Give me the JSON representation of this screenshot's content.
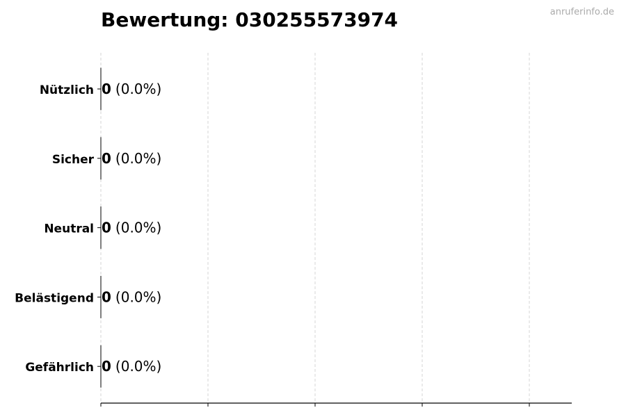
{
  "watermark": "anruferinfo.de",
  "chart_data": {
    "type": "bar",
    "orientation": "horizontal",
    "title": "Bewertung: 030255573974",
    "categories": [
      "Nützlich",
      "Sicher",
      "Neutral",
      "Belästigend",
      "Gefährlich"
    ],
    "values": [
      0,
      0,
      0,
      0,
      0
    ],
    "percent_labels": [
      "(0.0%)",
      "(0.0%)",
      "(0.0%)",
      "(0.0%)",
      "(0.0%)"
    ],
    "xlabel": "",
    "ylabel": "",
    "x_tick_labels": [],
    "grid": "vertical dashed",
    "colors": {
      "bar_edge": "#000000",
      "grid": "#cccccc",
      "text": "#000000",
      "watermark": "#aaaaaa"
    }
  }
}
